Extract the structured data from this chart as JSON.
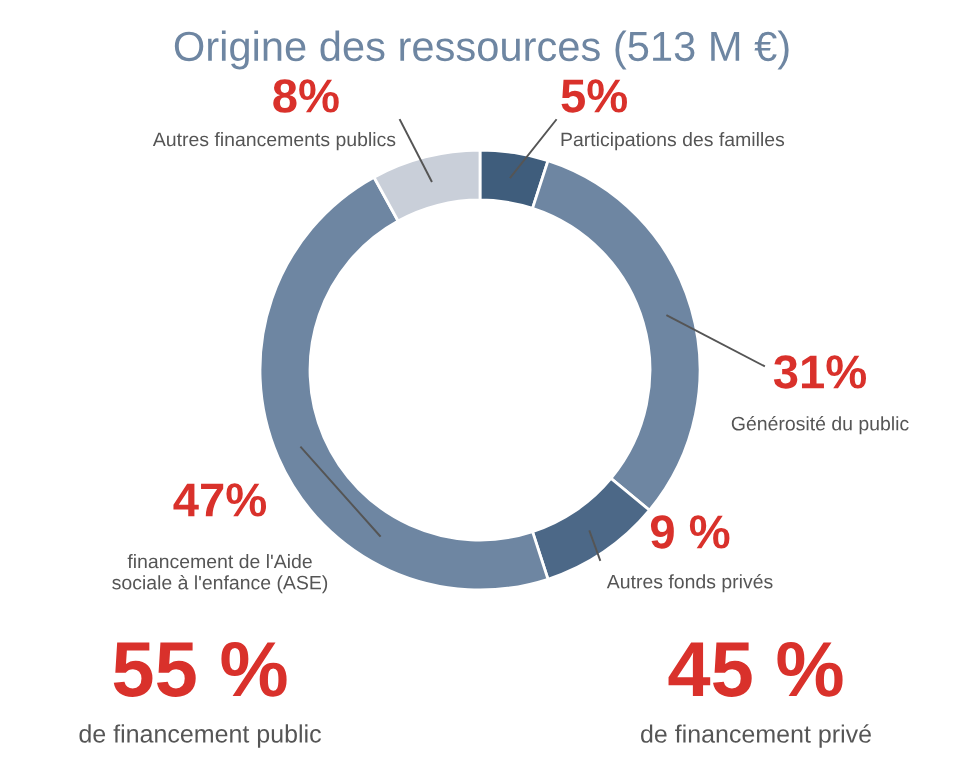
{
  "chart_data": {
    "type": "donut",
    "title": "Origine des ressources (513 M €)",
    "categories": [
      "Participations des familles",
      "Générosité du public",
      "Autres fonds privés",
      "financement de l'Aide\nsociale à l'enfance (ASE)",
      "Autres financements publics"
    ],
    "values": [
      5,
      31,
      9,
      47,
      8
    ],
    "colors": [
      "#3f5d7c",
      "#6e86a2",
      "#4c6887",
      "#6e86a2",
      "#c9cfd9"
    ],
    "value_labels": [
      "5%",
      "31%",
      "9 %",
      "47%",
      "8%"
    ],
    "annotations": [
      "55 %",
      "de financement public",
      "45 %",
      "de financement privé"
    ],
    "legend": false
  }
}
